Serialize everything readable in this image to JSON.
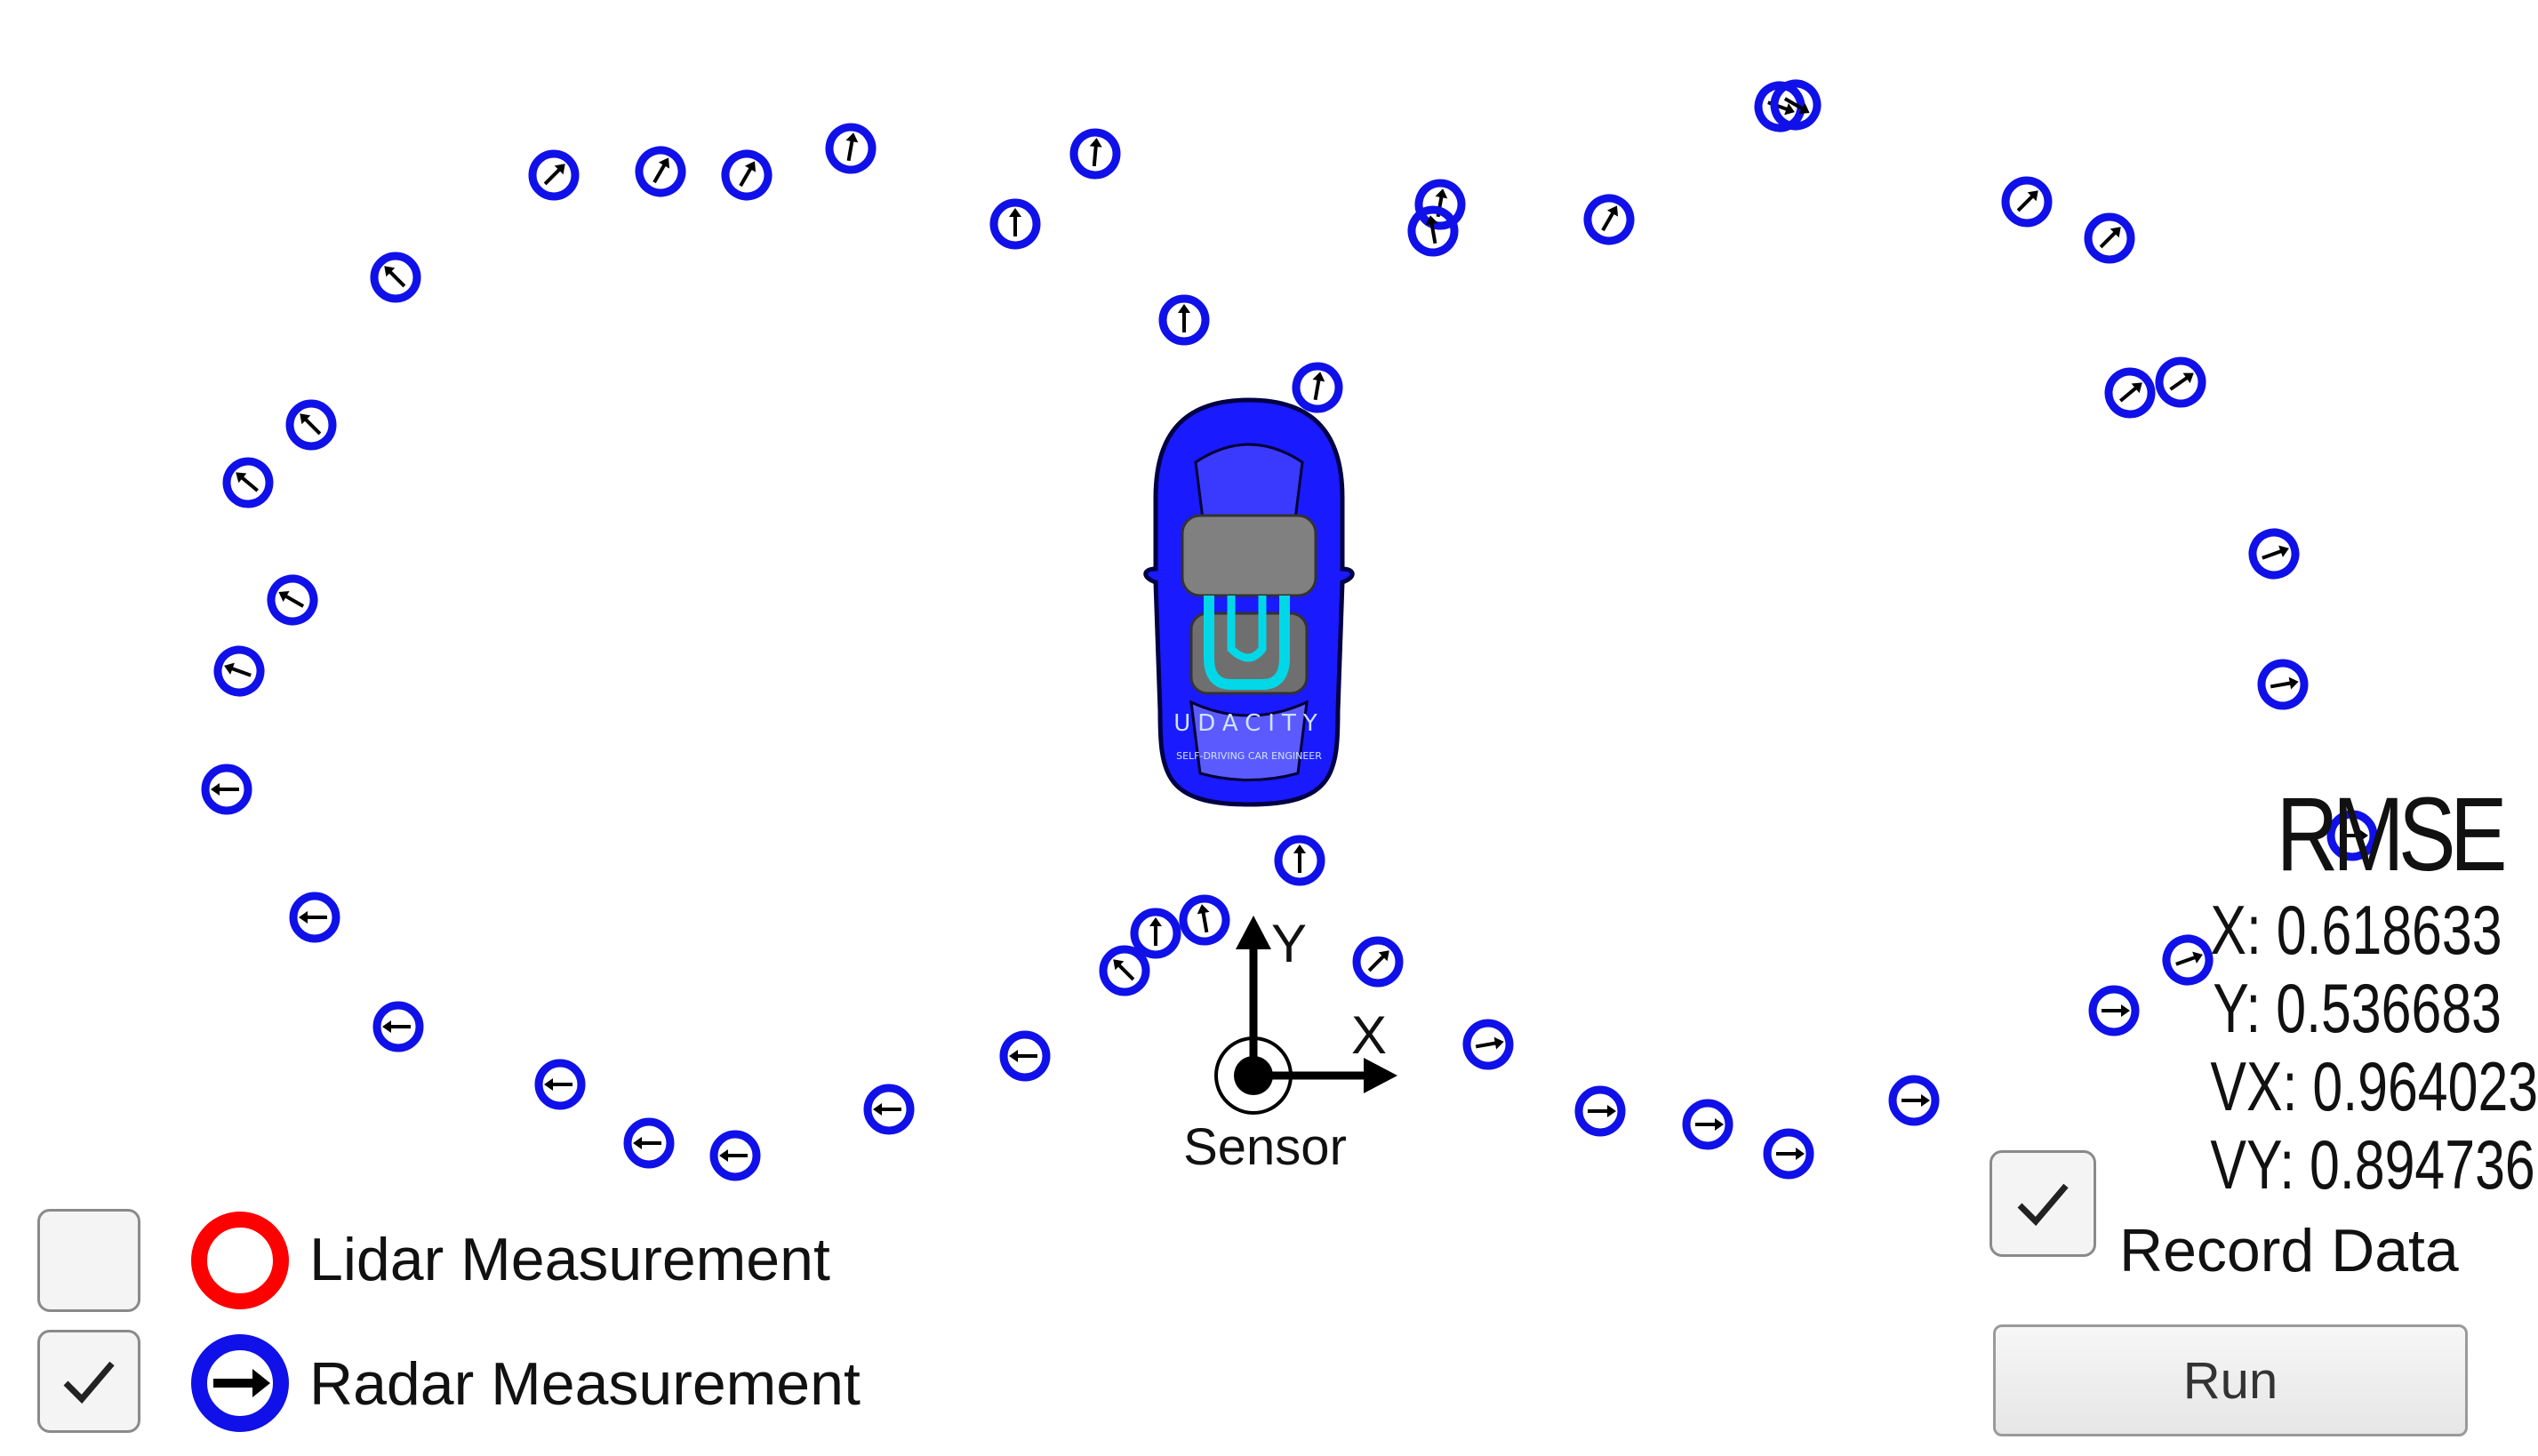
{
  "legend": {
    "lidar": {
      "label": "Lidar Measurement",
      "checked": false,
      "color": "#ff0000"
    },
    "radar": {
      "label": "Radar Measurement",
      "checked": true,
      "color": "#0000ff"
    }
  },
  "record": {
    "label": "Record Data",
    "checked": true
  },
  "run": {
    "label": "Run"
  },
  "rmse": {
    "title": "RMSE",
    "x": "X: 0.618633",
    "y": "Y: 0.536683",
    "vx": "VX: 0.964023",
    "vy": "VY: 0.894736"
  },
  "sensor": {
    "label": "Sensor",
    "x_axis": "X",
    "y_axis": "Y"
  },
  "car": {
    "color": "#1a1aff",
    "brand": "UDACITY",
    "tagline": "SELF-DRIVING CAR ENGINEER"
  },
  "colors": {
    "radar_ring": "#1010e8",
    "lidar_ring": "#ff0000",
    "arrow": "#000000"
  }
}
